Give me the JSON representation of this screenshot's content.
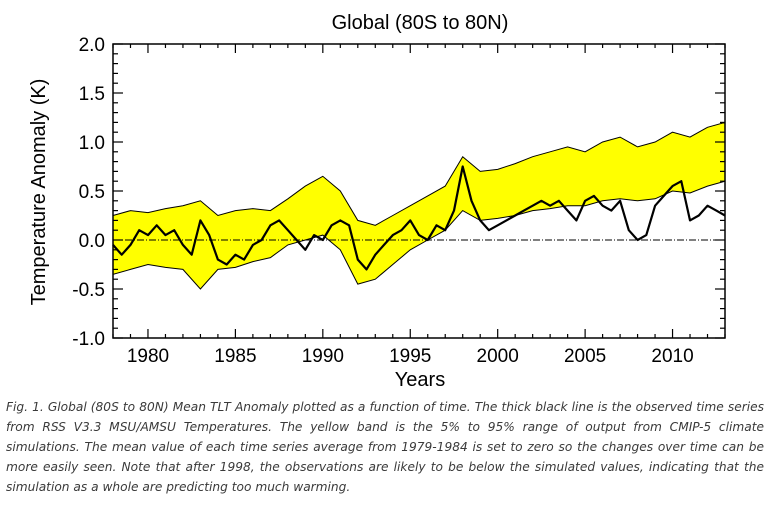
{
  "chart_data": {
    "type": "line",
    "title": "Global (80S to 80N)",
    "xlabel": "Years",
    "ylabel": "Temperature Anomaly (K)",
    "xlim": [
      1978,
      2013
    ],
    "ylim": [
      -1.0,
      2.0
    ],
    "x_ticks": [
      1980,
      1985,
      1990,
      1995,
      2000,
      2005,
      2010
    ],
    "y_ticks": [
      -1.0,
      -0.5,
      0.0,
      0.5,
      1.0,
      1.5,
      2.0
    ],
    "y_tick_labels": [
      "-1.0",
      "-0.5",
      "0.0",
      "0.5",
      "1.0",
      "1.5",
      "2.0"
    ],
    "zero_line": true,
    "band": {
      "color": "#ffff00",
      "x": [
        1978,
        1979,
        1980,
        1981,
        1982,
        1983,
        1984,
        1985,
        1986,
        1987,
        1988,
        1989,
        1990,
        1991,
        1992,
        1993,
        1994,
        1995,
        1996,
        1997,
        1998,
        1999,
        2000,
        2001,
        2002,
        2003,
        2004,
        2005,
        2006,
        2007,
        2008,
        2009,
        2010,
        2011,
        2012,
        2013
      ],
      "upper": [
        0.25,
        0.3,
        0.28,
        0.32,
        0.35,
        0.4,
        0.25,
        0.3,
        0.32,
        0.3,
        0.42,
        0.55,
        0.65,
        0.5,
        0.2,
        0.15,
        0.25,
        0.35,
        0.45,
        0.55,
        0.85,
        0.7,
        0.72,
        0.78,
        0.85,
        0.9,
        0.95,
        0.9,
        1.0,
        1.05,
        0.95,
        1.0,
        1.1,
        1.05,
        1.15,
        1.2
      ],
      "lower": [
        -0.35,
        -0.3,
        -0.25,
        -0.28,
        -0.3,
        -0.5,
        -0.3,
        -0.28,
        -0.22,
        -0.18,
        -0.05,
        0.0,
        0.05,
        -0.1,
        -0.45,
        -0.4,
        -0.25,
        -0.1,
        0.0,
        0.1,
        0.3,
        0.2,
        0.22,
        0.25,
        0.3,
        0.32,
        0.35,
        0.35,
        0.4,
        0.42,
        0.4,
        0.42,
        0.5,
        0.48,
        0.55,
        0.6
      ]
    },
    "series": [
      {
        "color": "#000000",
        "x": [
          1978.0,
          1978.5,
          1979.0,
          1979.5,
          1980.0,
          1980.5,
          1981.0,
          1981.5,
          1982.0,
          1982.5,
          1983.0,
          1983.5,
          1984.0,
          1984.5,
          1985.0,
          1985.5,
          1986.0,
          1986.5,
          1987.0,
          1987.5,
          1988.0,
          1988.5,
          1989.0,
          1989.5,
          1990.0,
          1990.5,
          1991.0,
          1991.5,
          1992.0,
          1992.5,
          1993.0,
          1993.5,
          1994.0,
          1994.5,
          1995.0,
          1995.5,
          1996.0,
          1996.5,
          1997.0,
          1997.5,
          1998.0,
          1998.5,
          1999.0,
          1999.5,
          2000.0,
          2000.5,
          2001.0,
          2001.5,
          2002.0,
          2002.5,
          2003.0,
          2003.5,
          2004.0,
          2004.5,
          2005.0,
          2005.5,
          2006.0,
          2006.5,
          2007.0,
          2007.5,
          2008.0,
          2008.5,
          2009.0,
          2009.5,
          2010.0,
          2010.5,
          2011.0,
          2011.5,
          2012.0,
          2012.5,
          2013.0
        ],
        "values": [
          -0.05,
          -0.15,
          -0.05,
          0.1,
          0.05,
          0.15,
          0.05,
          0.1,
          -0.05,
          -0.15,
          0.2,
          0.05,
          -0.2,
          -0.25,
          -0.15,
          -0.2,
          -0.05,
          0.0,
          0.15,
          0.2,
          0.1,
          0.0,
          -0.1,
          0.05,
          0.0,
          0.15,
          0.2,
          0.15,
          -0.2,
          -0.3,
          -0.15,
          -0.05,
          0.05,
          0.1,
          0.2,
          0.05,
          0.0,
          0.15,
          0.1,
          0.3,
          0.75,
          0.4,
          0.2,
          0.1,
          0.15,
          0.2,
          0.25,
          0.3,
          0.35,
          0.4,
          0.35,
          0.4,
          0.3,
          0.2,
          0.4,
          0.45,
          0.35,
          0.3,
          0.4,
          0.1,
          0.0,
          0.05,
          0.35,
          0.45,
          0.55,
          0.6,
          0.2,
          0.25,
          0.35,
          0.3,
          0.25
        ]
      }
    ]
  },
  "caption": "Fig. 1.  Global (80S to 80N) Mean TLT Anomaly plotted as a function of time.  The thick black line is the observed time series from RSS V3.3 MSU/AMSU Temperatures.  The yellow band is the 5% to 95% range of output from CMIP-5 climate simulations.  The mean value of each time series average from 1979-1984 is set to zero so the changes over time can be more easily seen.  Note that after 1998, the observations are likely to be below the simulated values, indicating that the simulation as a whole are predicting too much warming."
}
